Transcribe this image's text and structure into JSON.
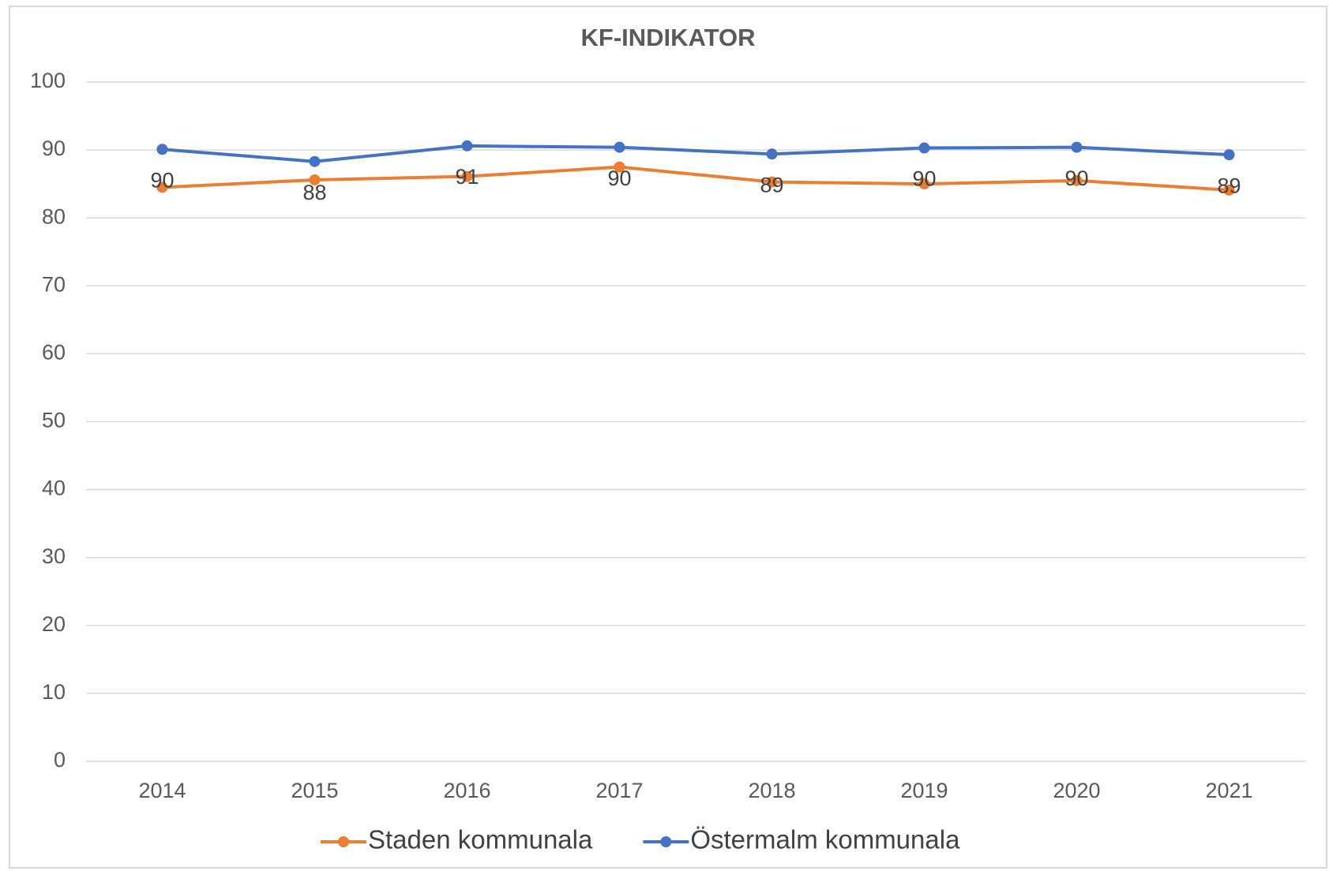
{
  "chart_data": {
    "type": "line",
    "title": "KF-INDIKATOR",
    "categories": [
      "2014",
      "2015",
      "2016",
      "2017",
      "2018",
      "2019",
      "2020",
      "2021"
    ],
    "series": [
      {
        "name": "Staden kommunala",
        "color": "#ed7d31",
        "values": [
          84.5,
          85.6,
          86.1,
          87.5,
          85.3,
          85.0,
          85.5,
          84.1
        ]
      },
      {
        "name": "Östermalm kommunala",
        "color": "#4472c4",
        "values": [
          90.1,
          88.3,
          90.6,
          90.4,
          89.4,
          90.3,
          90.4,
          89.3
        ],
        "value_labels": [
          "90",
          "88",
          "91",
          "90",
          "89",
          "90",
          "90",
          "89"
        ]
      }
    ],
    "ylim": [
      0,
      100
    ],
    "yticks": [
      0,
      10,
      20,
      30,
      40,
      50,
      60,
      70,
      80,
      90,
      100
    ],
    "grid": true,
    "legend": "bottom"
  }
}
